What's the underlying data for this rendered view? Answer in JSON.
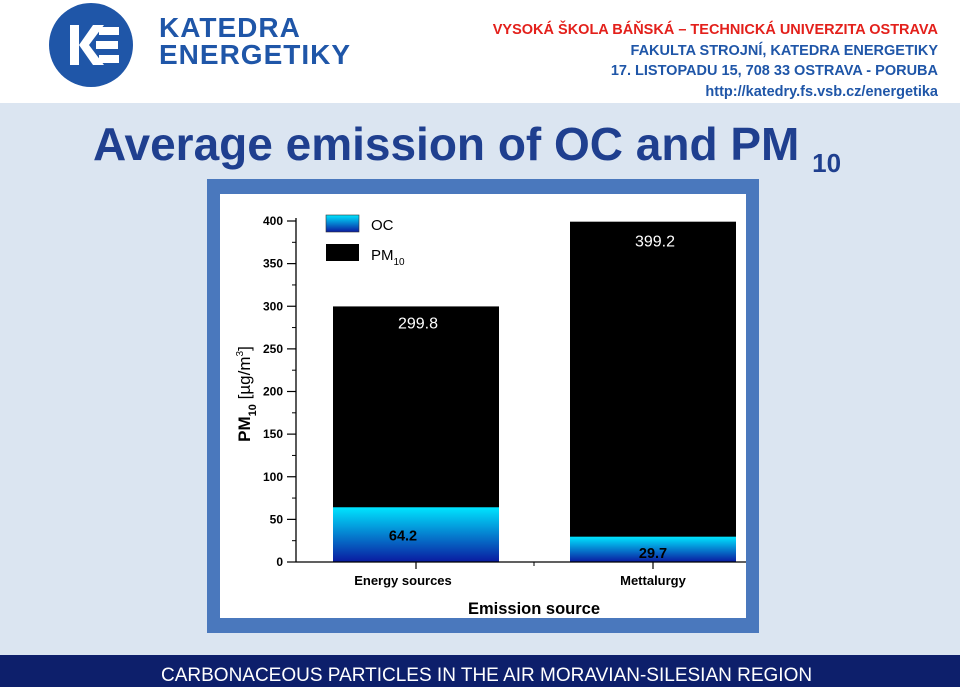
{
  "header": {
    "logo_line1": "KATEDRA",
    "logo_line2": "ENERGETIKY",
    "institution": [
      "VYSOKÁ ŠKOLA BÁŇSKÁ – TECHNICKÁ UNIVERZITA OSTRAVA",
      "FAKULTA STROJNÍ, KATEDRA ENERGETIKY",
      "17. LISTOPADU 15, 708 33 OSTRAVA - PORUBA",
      "http://katedry.fs.vsb.cz/energetika"
    ]
  },
  "slide": {
    "title_main": "Average emission of OC and PM",
    "title_sub": "10"
  },
  "footer": {
    "text": "CARBONACEOUS PARTICLES IN THE AIR MORAVIAN-SILESIAN REGION"
  },
  "colors": {
    "brand_blue": "#1f56a8",
    "brand_red": "#e3201b",
    "frame_blue": "#4a78bd",
    "footer_navy": "#0d1f6b",
    "pm10_bar": "#000000",
    "oc_bar_top": "#00e5ff",
    "oc_bar_bottom": "#0a1aa0"
  },
  "chart_data": {
    "type": "bar",
    "stacking": "overlay",
    "categories": [
      "Energy sources",
      "Mettalurgy"
    ],
    "series": [
      {
        "name": "PM10",
        "legend_label": "PM",
        "legend_sub": "10",
        "values": [
          299.8,
          399.2
        ]
      },
      {
        "name": "OC",
        "legend_label": "OC",
        "legend_sub": "",
        "values": [
          64.2,
          29.7
        ]
      }
    ],
    "data_labels": {
      "pm10": [
        "299.8",
        "399.2"
      ],
      "oc": [
        "64.2",
        "29.7"
      ]
    },
    "xlabel": "Emission source",
    "ylabel_main": "PM",
    "ylabel_sub": "10",
    "ylabel_unit": "[µg/m",
    "ylabel_unit_sup": "3",
    "ylabel_close": "]",
    "ylim": [
      0,
      400
    ],
    "yticks": [
      "0",
      "50",
      "100",
      "150",
      "200",
      "250",
      "300",
      "350",
      "400"
    ],
    "legend_position": "top-left",
    "grid": false
  }
}
